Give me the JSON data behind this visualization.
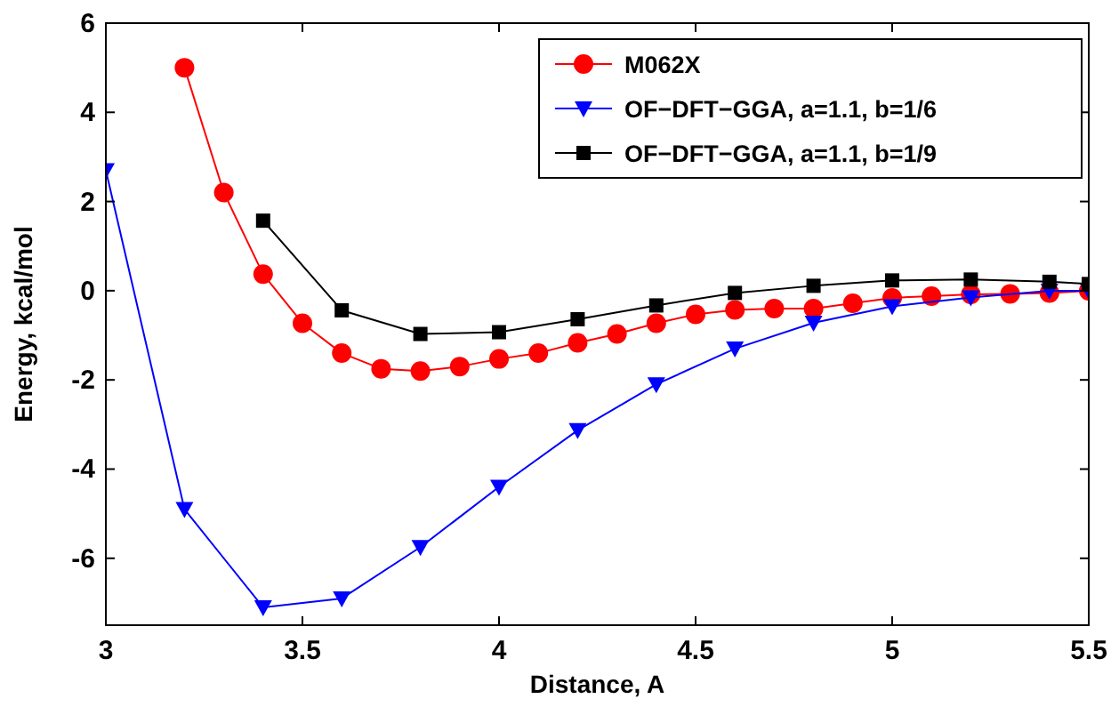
{
  "chart_data": {
    "type": "line",
    "xlabel": "Distance, A",
    "ylabel": "Energy, kcal/mol",
    "xlim": [
      3,
      5.5
    ],
    "ylim": [
      -7.5,
      6
    ],
    "xticks": [
      3,
      3.5,
      4,
      4.5,
      5,
      5.5
    ],
    "yticks": [
      -6,
      -4,
      -2,
      0,
      2,
      4,
      6
    ],
    "grid": false,
    "legend": "top right",
    "line_style": "solid",
    "series": [
      {
        "name": "M062X",
        "color": "#ff0000",
        "marker": "circle",
        "x": [
          3.2,
          3.3,
          3.4,
          3.5,
          3.6,
          3.7,
          3.8,
          3.9,
          4.0,
          4.1,
          4.2,
          4.3,
          4.4,
          4.5,
          4.6,
          4.7,
          4.8,
          4.9,
          5.0,
          5.1,
          5.2,
          5.3,
          5.4,
          5.5
        ],
        "values": [
          5.0,
          2.2,
          0.37,
          -0.73,
          -1.4,
          -1.75,
          -1.8,
          -1.7,
          -1.53,
          -1.4,
          -1.17,
          -0.97,
          -0.73,
          -0.53,
          -0.43,
          -0.4,
          -0.4,
          -0.28,
          -0.16,
          -0.12,
          -0.08,
          -0.07,
          -0.05,
          0
        ]
      },
      {
        "name": "OF−DFT−GGA, a=1.1, b=1/6",
        "color": "#0000ff",
        "marker": "triangle",
        "x": [
          3.0,
          3.2,
          3.4,
          3.6,
          3.8,
          4.0,
          4.2,
          4.4,
          4.6,
          4.8,
          5.0,
          5.2,
          5.4,
          5.5
        ],
        "values": [
          2.7,
          -4.9,
          -7.1,
          -6.9,
          -5.75,
          -4.4,
          -3.13,
          -2.1,
          -1.3,
          -0.72,
          -0.35,
          -0.15,
          0,
          0
        ]
      },
      {
        "name": "OF−DFT−GGA, a=1.1, b=1/9",
        "color": "#000000",
        "marker": "square",
        "x": [
          3.4,
          3.6,
          3.8,
          4.0,
          4.2,
          4.4,
          4.6,
          4.8,
          5.0,
          5.2,
          5.4,
          5.5
        ],
        "values": [
          1.57,
          -0.44,
          -0.97,
          -0.93,
          -0.64,
          -0.33,
          -0.05,
          0.11,
          0.23,
          0.25,
          0.2,
          0.15
        ]
      }
    ]
  }
}
